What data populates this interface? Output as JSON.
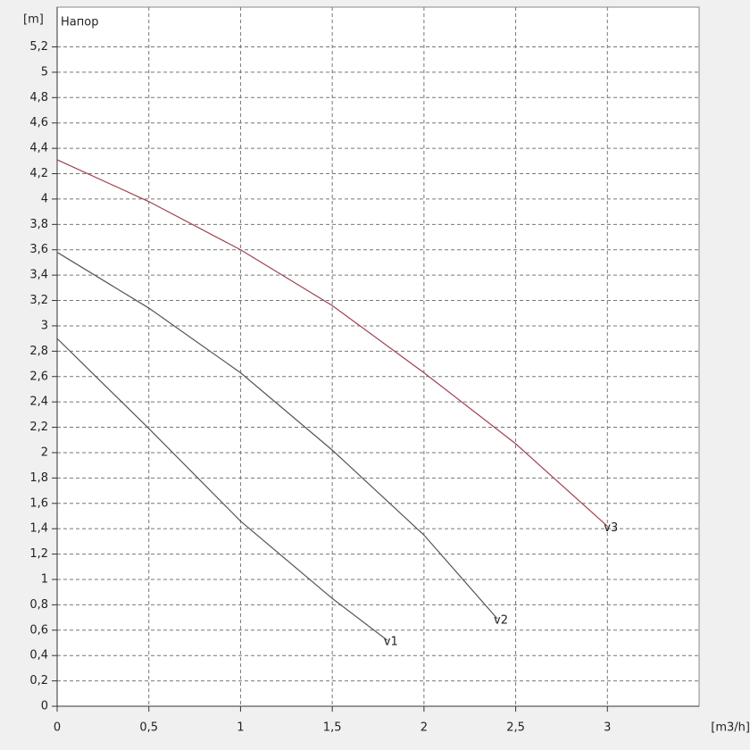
{
  "chart_data": {
    "type": "line",
    "title": "Напор",
    "y_label": "[m]",
    "x_label": "[m3/h]",
    "xlim": [
      0,
      3.5
    ],
    "ylim": [
      0,
      5.45
    ],
    "xticks": [
      0,
      {
        "value": 0.5,
        "label": "0,5"
      },
      1,
      {
        "value": 1.5,
        "label": "1,5"
      },
      2,
      {
        "value": 2.5,
        "label": "2,5"
      },
      3
    ],
    "yticks": [
      0,
      {
        "value": 0.2,
        "label": "0,2"
      },
      {
        "value": 0.4,
        "label": "0,4"
      },
      {
        "value": 0.6,
        "label": "0,6"
      },
      {
        "value": 0.8,
        "label": "0,8"
      },
      1,
      {
        "value": 1.2,
        "label": "1,2"
      },
      {
        "value": 1.4,
        "label": "1,4"
      },
      {
        "value": 1.6,
        "label": "1,6"
      },
      {
        "value": 1.8,
        "label": "1,8"
      },
      2,
      {
        "value": 2.2,
        "label": "2,2"
      },
      {
        "value": 2.4,
        "label": "2,4"
      },
      {
        "value": 2.6,
        "label": "2,6"
      },
      {
        "value": 2.8,
        "label": "2,8"
      },
      3,
      {
        "value": 3.2,
        "label": "3,2"
      },
      {
        "value": 3.4,
        "label": "3,4"
      },
      {
        "value": 3.6,
        "label": "3,6"
      },
      {
        "value": 3.8,
        "label": "3,8"
      },
      4,
      {
        "value": 4.2,
        "label": "4,2"
      },
      {
        "value": 4.4,
        "label": "4,4"
      },
      {
        "value": 4.6,
        "label": "4,6"
      },
      {
        "value": 4.8,
        "label": "4,8"
      },
      5,
      {
        "value": 5.2,
        "label": "5,2"
      }
    ],
    "grid": true,
    "series": [
      {
        "name": "v1",
        "color": "#555555",
        "x": [
          0,
          0.5,
          1,
          1.5,
          1.8
        ],
        "values": [
          2.9,
          2.19,
          1.46,
          0.85,
          0.52
        ]
      },
      {
        "name": "v2",
        "color": "#555555",
        "x": [
          0,
          0.5,
          1,
          1.5,
          2,
          2.4
        ],
        "values": [
          3.58,
          3.14,
          2.63,
          2.02,
          1.35,
          0.69
        ]
      },
      {
        "name": "v3",
        "color": "#a0404f",
        "x": [
          0,
          0.5,
          1,
          1.5,
          2,
          2.5,
          3
        ],
        "values": [
          4.31,
          3.98,
          3.6,
          3.16,
          2.63,
          2.07,
          1.42
        ]
      }
    ]
  }
}
